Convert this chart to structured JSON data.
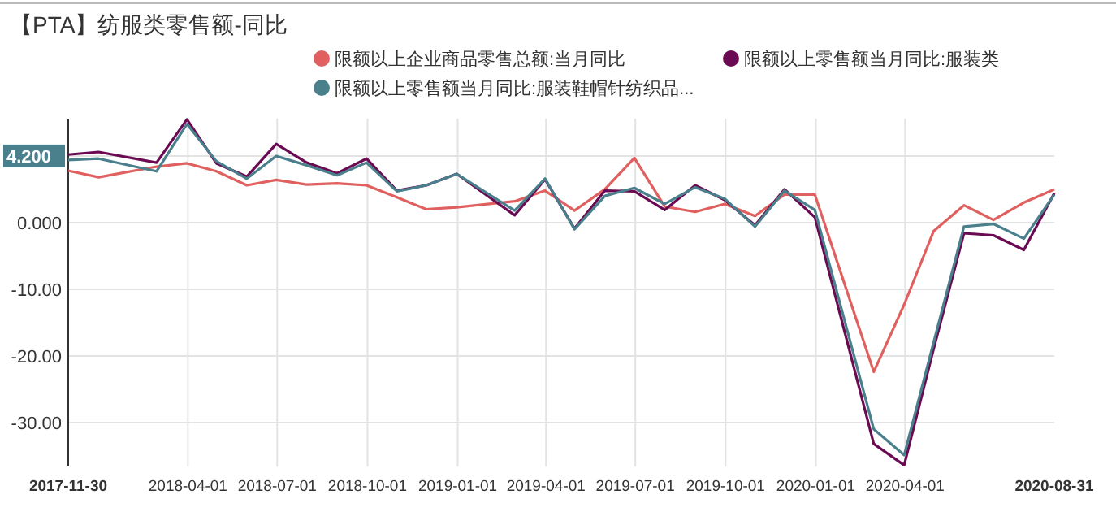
{
  "chart_data": {
    "type": "line",
    "title": "【PTA】纺服类零售额-同比",
    "x": [
      "2017-11-30",
      "2017-12-31",
      "2018-02-28",
      "2018-03-31",
      "2018-04-30",
      "2018-05-31",
      "2018-06-30",
      "2018-07-31",
      "2018-08-31",
      "2018-09-30",
      "2018-10-31",
      "2018-11-30",
      "2018-12-31",
      "2019-02-28",
      "2019-03-31",
      "2019-04-30",
      "2019-05-31",
      "2019-06-30",
      "2019-07-31",
      "2019-08-31",
      "2019-09-30",
      "2019-10-31",
      "2019-11-30",
      "2019-12-31",
      "2020-02-29",
      "2020-03-31",
      "2020-04-30",
      "2020-05-31",
      "2020-06-30",
      "2020-07-31",
      "2020-08-31"
    ],
    "series": [
      {
        "name": "限额以上企业商品零售总额:当月同比",
        "color": "#e06060",
        "values": [
          7.8,
          6.8,
          8.4,
          8.9,
          7.7,
          5.6,
          6.4,
          5.7,
          5.9,
          5.6,
          3.8,
          2.0,
          2.3,
          3.2,
          4.8,
          1.8,
          5.0,
          9.7,
          2.4,
          1.6,
          2.8,
          1.0,
          4.2,
          4.2,
          -22.4,
          -12.3,
          -1.3,
          2.6,
          0.4,
          3.0,
          5.0
        ]
      },
      {
        "name": "限额以上零售额当月同比:服装类",
        "color": "#6a0a52",
        "values": [
          10.2,
          10.6,
          9.0,
          15.5,
          8.9,
          6.9,
          11.8,
          9.0,
          7.4,
          9.6,
          4.8,
          5.6,
          7.3,
          1.1,
          6.5,
          -0.9,
          4.8,
          4.7,
          1.9,
          5.6,
          3.4,
          -0.4,
          5.0,
          0.8,
          -33.2,
          -36.4,
          -19,
          -1.6,
          -1.9,
          -4.1,
          4.4
        ]
      },
      {
        "name": "限额以上零售额当月同比:服装鞋帽针纺织品...",
        "color": "#4a7f8c",
        "values": [
          9.4,
          9.6,
          7.7,
          14.8,
          9.2,
          6.6,
          10.0,
          8.6,
          7.1,
          9.0,
          4.7,
          5.6,
          7.3,
          1.8,
          6.6,
          -1.0,
          4.0,
          5.2,
          2.8,
          5.3,
          3.6,
          -0.6,
          4.8,
          1.9,
          -31.0,
          -34.9,
          -18,
          -0.6,
          -0.2,
          -2.4,
          4.2
        ]
      }
    ],
    "xlim": [
      "2017-11-30",
      "2020-08-31"
    ],
    "xticks": [
      {
        "value": "2017-11-30",
        "label": "2017-11-30"
      },
      {
        "value": "2018-04-01",
        "label": "2018-04-01"
      },
      {
        "value": "2018-07-01",
        "label": "2018-07-01"
      },
      {
        "value": "2018-10-01",
        "label": "2018-10-01"
      },
      {
        "value": "2019-01-01",
        "label": "2019-01-01"
      },
      {
        "value": "2019-04-01",
        "label": "2019-04-01"
      },
      {
        "value": "2019-07-01",
        "label": "2019-07-01"
      },
      {
        "value": "2019-10-01",
        "label": "2019-10-01"
      },
      {
        "value": "2020-01-01",
        "label": "2020-01-01"
      },
      {
        "value": "2020-04-01",
        "label": "2020-04-01"
      },
      {
        "value": "2020-08-31",
        "label": "2020-08-31"
      }
    ],
    "ylim": [
      -36.6,
      15.6
    ],
    "yticks": [
      {
        "value": -30,
        "label": "-30.00"
      },
      {
        "value": -20,
        "label": "-20.00"
      },
      {
        "value": -10,
        "label": "-10.00"
      },
      {
        "value": 0,
        "label": "0.000"
      },
      {
        "value": 10,
        "label": null
      }
    ],
    "annotations": [
      "4.200"
    ],
    "grid": true,
    "legend": "top",
    "marker": "none",
    "line_style": "solid"
  }
}
